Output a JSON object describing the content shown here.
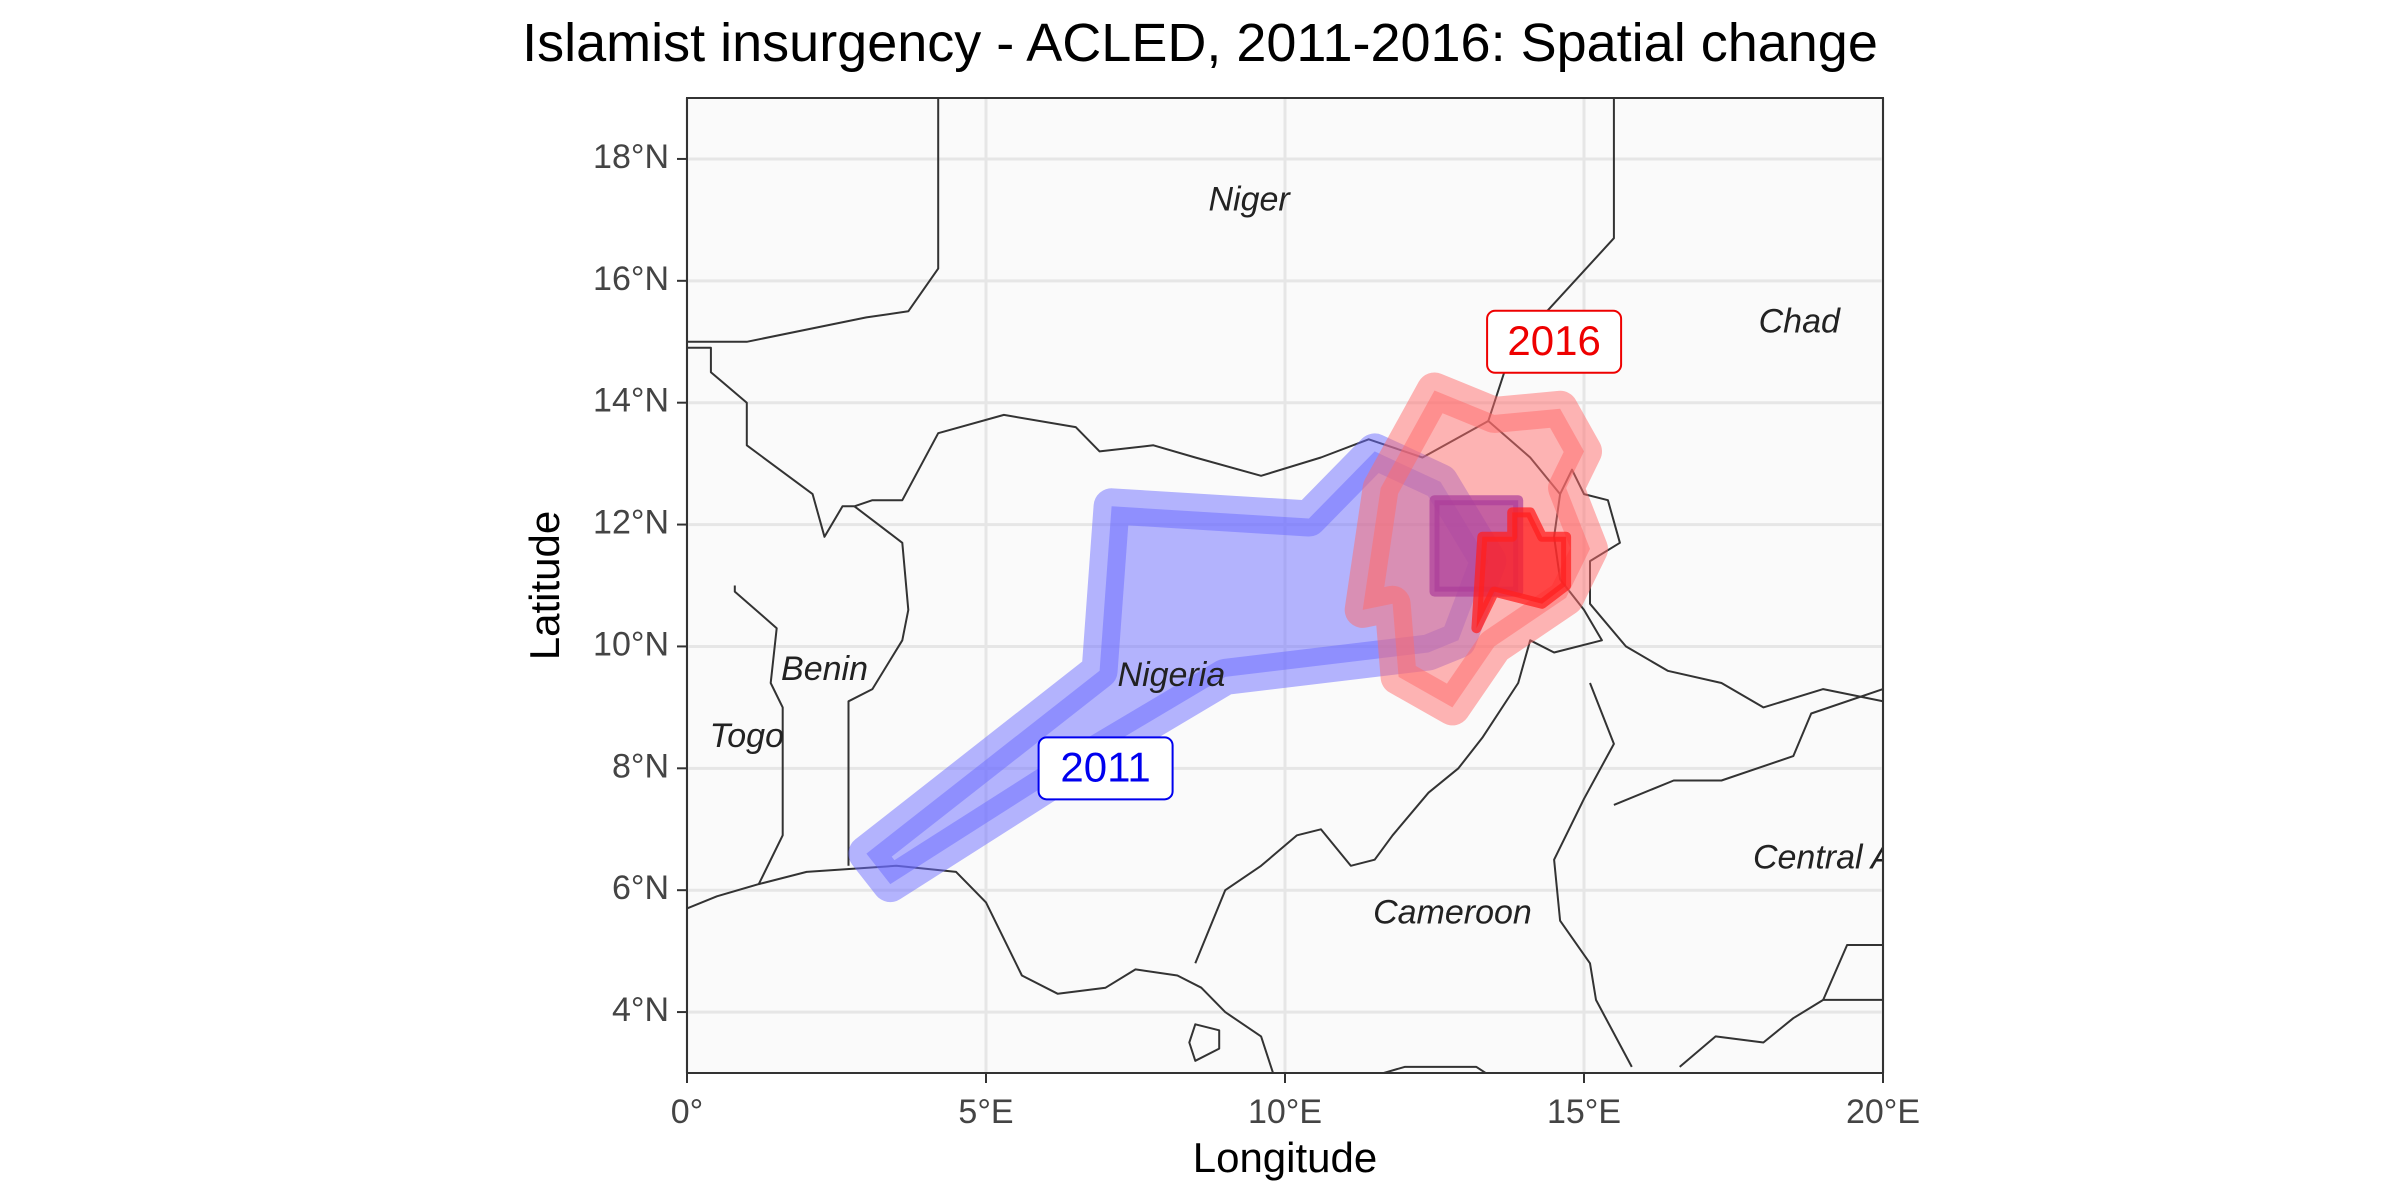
{
  "title": "Islamist insurgency - ACLED, 2011-2016: Spatial change",
  "map": {
    "xlabel": "Longitude",
    "ylabel": "Latitude",
    "xlim": [
      0,
      20
    ],
    "ylim": [
      3,
      19
    ],
    "x_ticks": [
      {
        "value": 0,
        "label": "0°"
      },
      {
        "value": 5,
        "label": "5°E"
      },
      {
        "value": 10,
        "label": "10°E"
      },
      {
        "value": 15,
        "label": "15°E"
      },
      {
        "value": 20,
        "label": "20°E"
      }
    ],
    "y_ticks": [
      {
        "value": 4,
        "label": "4°N"
      },
      {
        "value": 6,
        "label": "6°N"
      },
      {
        "value": 8,
        "label": "8°N"
      },
      {
        "value": 10,
        "label": "10°N"
      },
      {
        "value": 12,
        "label": "12°N"
      },
      {
        "value": 14,
        "label": "14°N"
      },
      {
        "value": 16,
        "label": "16°N"
      },
      {
        "value": 18,
        "label": "18°N"
      }
    ],
    "grid": true,
    "country_labels": [
      {
        "name": "Niger",
        "lon": 9.4,
        "lat": 17.3
      },
      {
        "name": "Chad",
        "lon": 18.6,
        "lat": 15.3
      },
      {
        "name": "Nigeria",
        "lon": 8.1,
        "lat": 9.5
      },
      {
        "name": "Benin",
        "lon": 2.3,
        "lat": 9.6
      },
      {
        "name": "Togo",
        "lon": 1.0,
        "lat": 8.5
      },
      {
        "name": "Cameroon",
        "lon": 12.8,
        "lat": 5.6
      },
      {
        "name": "Central A",
        "lon": 19.0,
        "lat": 6.5
      }
    ],
    "year_labels": [
      {
        "text": "2011",
        "lon": 7.0,
        "lat": 8.0,
        "color": "#0000EE"
      },
      {
        "text": "2016",
        "lon": 14.5,
        "lat": 15.0,
        "color": "#EE0000"
      }
    ],
    "regions": [
      {
        "year": "2011",
        "kind": "hull",
        "color": "#6b6bff",
        "opacity": 0.5,
        "coords": [
          [
            3.0,
            6.6
          ],
          [
            6.9,
            9.6
          ],
          [
            7.1,
            12.3
          ],
          [
            10.4,
            12.1
          ],
          [
            11.5,
            13.2
          ],
          [
            12.6,
            12.7
          ],
          [
            13.4,
            11.4
          ],
          [
            12.9,
            10.1
          ],
          [
            12.4,
            9.9
          ],
          [
            9.0,
            9.5
          ],
          [
            6.6,
            8.1
          ],
          [
            3.4,
            6.1
          ]
        ]
      },
      {
        "year": "2011",
        "kind": "core",
        "color": "#5a0fc8",
        "opacity": 0.7,
        "coords": [
          [
            12.5,
            10.9
          ],
          [
            13.9,
            10.9
          ],
          [
            13.9,
            12.4
          ],
          [
            12.5,
            12.4
          ]
        ]
      },
      {
        "year": "2016",
        "kind": "hull",
        "color": "#ff6b6b",
        "opacity": 0.5,
        "coords": [
          [
            11.3,
            10.6
          ],
          [
            11.6,
            12.6
          ],
          [
            12.5,
            14.2
          ],
          [
            13.5,
            13.8
          ],
          [
            14.6,
            13.9
          ],
          [
            15.0,
            13.2
          ],
          [
            14.7,
            12.6
          ],
          [
            15.1,
            11.6
          ],
          [
            14.7,
            10.8
          ],
          [
            13.5,
            10.0
          ],
          [
            12.8,
            9.0
          ],
          [
            11.9,
            9.5
          ],
          [
            11.8,
            10.7
          ]
        ]
      },
      {
        "year": "2016",
        "kind": "core",
        "color": "#ff2020",
        "opacity": 0.75,
        "coords": [
          [
            13.2,
            10.3
          ],
          [
            13.5,
            10.9
          ],
          [
            14.3,
            10.7
          ],
          [
            14.7,
            11.0
          ],
          [
            14.7,
            11.8
          ],
          [
            14.3,
            11.8
          ],
          [
            14.1,
            12.2
          ],
          [
            13.8,
            12.2
          ],
          [
            13.8,
            11.8
          ],
          [
            13.3,
            11.8
          ]
        ]
      }
    ],
    "borders": [
      [
        [
          0.0,
          5.7
        ],
        [
          0.5,
          5.9
        ],
        [
          1.2,
          6.1
        ],
        [
          2.0,
          6.3
        ],
        [
          3.5,
          6.4
        ],
        [
          4.5,
          6.3
        ],
        [
          5.0,
          5.8
        ],
        [
          5.6,
          4.6
        ],
        [
          6.2,
          4.3
        ],
        [
          7.0,
          4.4
        ],
        [
          7.5,
          4.7
        ],
        [
          8.2,
          4.6
        ],
        [
          8.6,
          4.4
        ],
        [
          9.0,
          4.0
        ],
        [
          9.6,
          3.6
        ],
        [
          9.9,
          2.7
        ]
      ],
      [
        [
          1.2,
          6.1
        ],
        [
          1.6,
          6.9
        ],
        [
          1.6,
          9.0
        ],
        [
          1.4,
          9.4
        ],
        [
          1.5,
          10.3
        ],
        [
          0.8,
          10.9
        ],
        [
          0.8,
          11.0
        ]
      ],
      [
        [
          2.7,
          6.4
        ],
        [
          2.7,
          7.9
        ],
        [
          2.7,
          9.1
        ],
        [
          3.1,
          9.3
        ],
        [
          3.6,
          10.1
        ],
        [
          3.7,
          10.6
        ],
        [
          3.6,
          11.7
        ],
        [
          3.2,
          12.0
        ],
        [
          2.8,
          12.3
        ]
      ],
      [
        [
          2.8,
          12.3
        ],
        [
          3.1,
          12.4
        ],
        [
          3.6,
          12.4
        ],
        [
          4.2,
          13.5
        ],
        [
          5.3,
          13.8
        ],
        [
          6.5,
          13.6
        ],
        [
          6.9,
          13.2
        ],
        [
          7.8,
          13.3
        ],
        [
          8.5,
          13.1
        ],
        [
          9.6,
          12.8
        ],
        [
          10.6,
          13.1
        ],
        [
          11.4,
          13.4
        ],
        [
          12.3,
          13.1
        ],
        [
          13.4,
          13.7
        ],
        [
          14.1,
          13.1
        ],
        [
          14.6,
          12.5
        ],
        [
          14.5,
          11.8
        ],
        [
          14.6,
          11.1
        ],
        [
          15.0,
          10.6
        ],
        [
          15.3,
          10.1
        ],
        [
          14.5,
          9.9
        ],
        [
          14.1,
          10.1
        ],
        [
          13.9,
          9.4
        ],
        [
          13.3,
          8.5
        ],
        [
          12.9,
          8.0
        ],
        [
          12.4,
          7.6
        ],
        [
          11.8,
          6.9
        ],
        [
          11.5,
          6.5
        ],
        [
          11.1,
          6.4
        ],
        [
          10.6,
          7.0
        ],
        [
          10.2,
          6.9
        ],
        [
          9.6,
          6.4
        ],
        [
          9.0,
          6.0
        ],
        [
          8.5,
          4.8
        ]
      ],
      [
        [
          0.0,
          14.9
        ],
        [
          0.4,
          14.9
        ],
        [
          0.4,
          14.5
        ],
        [
          1.0,
          14.0
        ],
        [
          1.0,
          13.3
        ],
        [
          2.1,
          12.5
        ],
        [
          2.3,
          11.8
        ],
        [
          2.6,
          12.3
        ],
        [
          2.8,
          12.3
        ]
      ],
      [
        [
          0.0,
          15.0
        ],
        [
          1.0,
          15.0
        ],
        [
          3.0,
          15.4
        ],
        [
          3.7,
          15.5
        ],
        [
          4.2,
          16.2
        ],
        [
          4.2,
          17.0
        ],
        [
          4.2,
          19.0
        ]
      ],
      [
        [
          13.4,
          13.7
        ],
        [
          13.7,
          14.6
        ],
        [
          14.1,
          15.2
        ],
        [
          15.5,
          16.7
        ],
        [
          15.5,
          19.0
        ]
      ],
      [
        [
          14.6,
          12.5
        ],
        [
          14.8,
          12.9
        ],
        [
          15.0,
          12.5
        ],
        [
          15.4,
          12.4
        ],
        [
          15.6,
          11.7
        ],
        [
          15.1,
          11.4
        ],
        [
          15.1,
          10.7
        ],
        [
          15.7,
          10.0
        ],
        [
          16.4,
          9.6
        ],
        [
          17.3,
          9.4
        ],
        [
          18.0,
          9.0
        ],
        [
          19.0,
          9.3
        ],
        [
          20.0,
          9.1
        ]
      ],
      [
        [
          15.1,
          9.4
        ],
        [
          15.5,
          8.4
        ],
        [
          15.0,
          7.5
        ],
        [
          14.5,
          6.5
        ],
        [
          14.6,
          5.5
        ],
        [
          15.1,
          4.8
        ],
        [
          15.2,
          4.2
        ],
        [
          15.8,
          3.1
        ]
      ],
      [
        [
          11.3,
          2.9
        ],
        [
          12.0,
          3.1
        ],
        [
          13.2,
          3.1
        ],
        [
          14.6,
          2.2
        ]
      ],
      [
        [
          15.5,
          7.4
        ],
        [
          16.5,
          7.8
        ],
        [
          17.3,
          7.8
        ],
        [
          18.5,
          8.2
        ],
        [
          18.8,
          8.9
        ],
        [
          20.0,
          9.3
        ]
      ],
      [
        [
          16.6,
          3.1
        ],
        [
          17.2,
          3.6
        ],
        [
          18.0,
          3.5
        ],
        [
          18.5,
          3.9
        ],
        [
          19.0,
          4.2
        ],
        [
          20.0,
          4.2
        ]
      ],
      [
        [
          19.0,
          4.2
        ],
        [
          19.4,
          5.1
        ],
        [
          20.0,
          5.1
        ]
      ]
    ],
    "islands": [
      [
        [
          8.5,
          3.8
        ],
        [
          8.9,
          3.7
        ],
        [
          8.9,
          3.4
        ],
        [
          8.5,
          3.2
        ],
        [
          8.4,
          3.5
        ]
      ]
    ]
  }
}
